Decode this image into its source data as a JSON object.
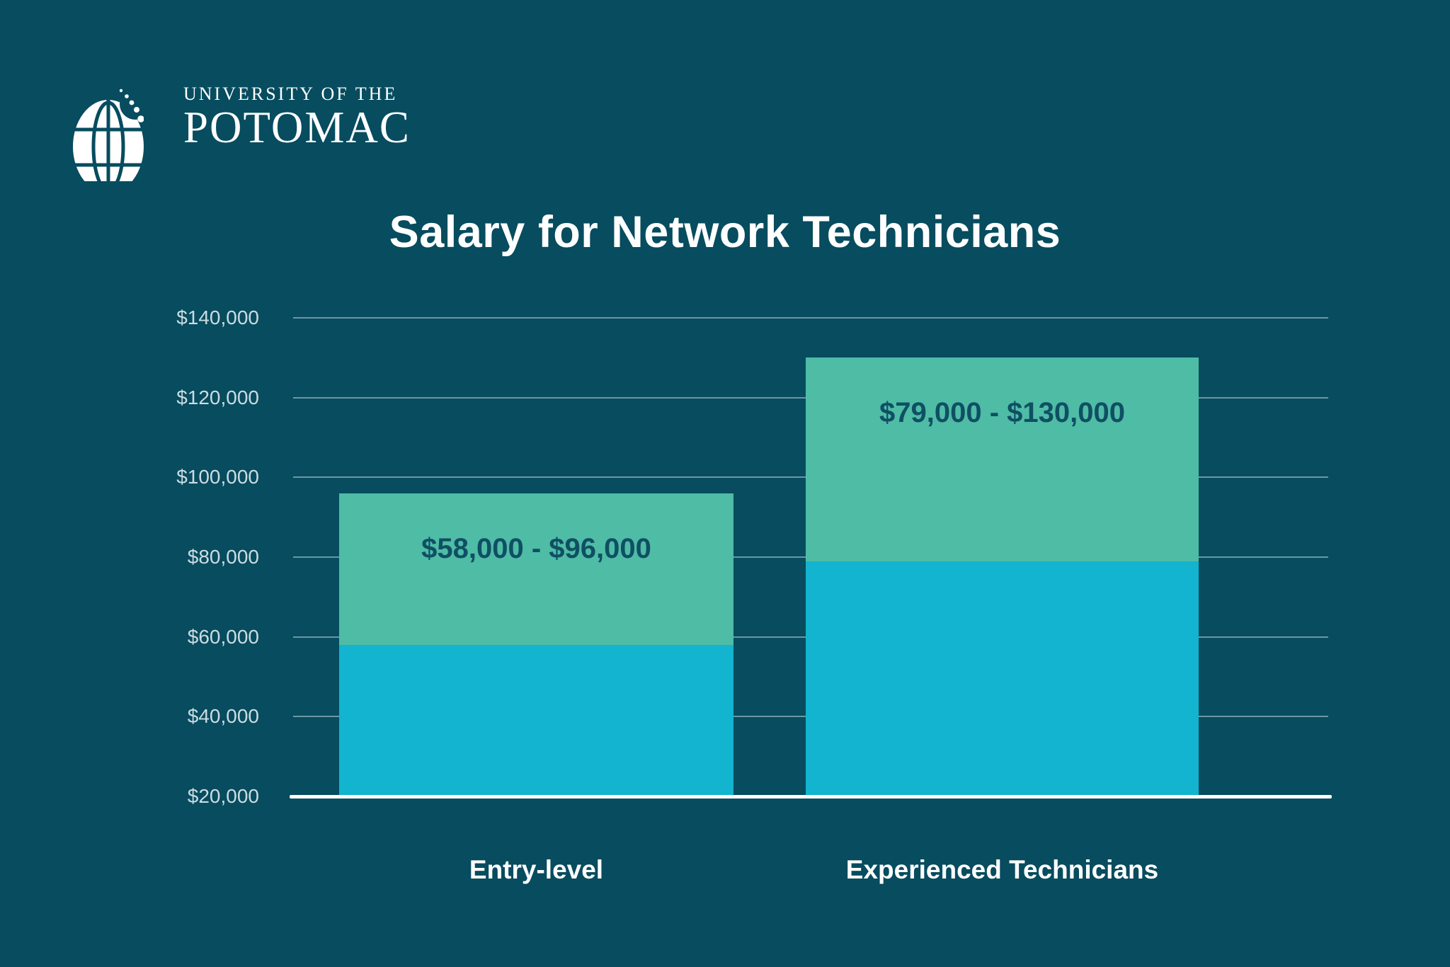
{
  "page": {
    "background": "#074C5F"
  },
  "logo": {
    "line1": "UNIVERSITY OF THE",
    "line2": "POTOMAC"
  },
  "chart_data": {
    "type": "bar",
    "subtype": "range-columns",
    "title": "Salary for Network Technicians",
    "categories": [
      "Entry-level",
      "Experienced Technicians"
    ],
    "series": [
      {
        "name": "range-low",
        "values": [
          58000,
          79000
        ]
      },
      {
        "name": "range-high",
        "values": [
          96000,
          130000
        ]
      }
    ],
    "bar_labels": [
      "$58,000 - $96,000",
      "$79,000 - $130,000"
    ],
    "ylim": [
      20000,
      140000
    ],
    "yticks": [
      140000,
      120000,
      100000,
      80000,
      60000,
      40000,
      20000
    ],
    "ytick_labels": [
      "$140,000",
      "$120,000",
      "$100,000",
      "$80,000",
      "$60,000",
      "$40,000",
      "$20,000"
    ],
    "grid": true,
    "legend": "none",
    "colors": {
      "background": "#074C5F",
      "bar_low": "#12B4CF",
      "bar_high": "#4FBCA6",
      "range_label_text": "#0F4F63",
      "tick_text": "#CBDCE1",
      "gridline": "rgba(235,245,248,0.45)",
      "baseline": "#FFFFFF",
      "title_text": "#FFFFFF",
      "xlabel_text": "#FFFFFF",
      "logo_text": "#FFFFFF"
    }
  }
}
